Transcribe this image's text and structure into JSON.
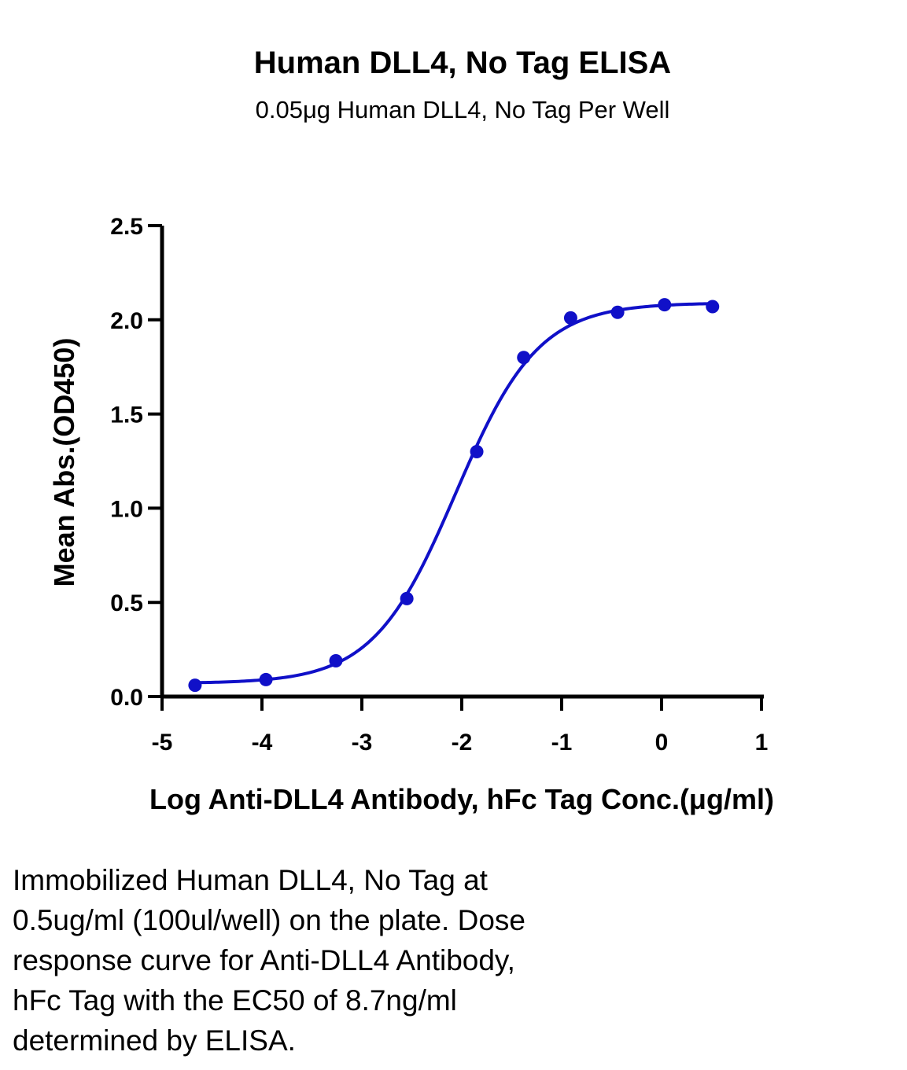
{
  "chart_data": {
    "type": "scatter",
    "title": "Human DLL4, No Tag ELISA",
    "subtitle": "0.05μg Human DLL4, No Tag Per Well",
    "xlabel": "Log Anti-DLL4 Antibody, hFc Tag Conc.(μg/ml)",
    "ylabel": "Mean Abs.(OD450)",
    "xlim": [
      -5,
      1
    ],
    "ylim": [
      0,
      2.5
    ],
    "xticks": [
      {
        "value": -5,
        "label": "-5"
      },
      {
        "value": -4,
        "label": "-4"
      },
      {
        "value": -3,
        "label": "-3"
      },
      {
        "value": -2,
        "label": "-2"
      },
      {
        "value": -1,
        "label": "-1"
      },
      {
        "value": 0,
        "label": "0"
      },
      {
        "value": 1,
        "label": "1"
      }
    ],
    "yticks": [
      {
        "value": 0,
        "label": "0.0"
      },
      {
        "value": 0.5,
        "label": "0.5"
      },
      {
        "value": 1,
        "label": "1.0"
      },
      {
        "value": 1.5,
        "label": "1.5"
      },
      {
        "value": 2,
        "label": "2.0"
      },
      {
        "value": 2.5,
        "label": "2.5"
      }
    ],
    "grid": false,
    "color": "#1010c8",
    "series": [
      {
        "x": [
          -4.67,
          -3.96,
          -3.26,
          -2.55,
          -1.85,
          -1.38,
          -0.91,
          -0.44,
          0.03,
          0.51
        ],
        "y": [
          0.06,
          0.09,
          0.19,
          0.52,
          1.3,
          1.8,
          2.01,
          2.04,
          2.08,
          2.07
        ]
      }
    ],
    "fit_curve": {
      "model": "4PL",
      "bottom": 0.07,
      "top": 2.09,
      "log_ec50": -2.06,
      "hill": 1.05
    }
  },
  "caption": {
    "lines": [
      "Immobilized Human DLL4, No Tag at",
      "0.5ug/ml (100ul/well) on the plate. Dose",
      "response curve for Anti-DLL4 Antibody,",
      "hFc Tag with the EC50 of 8.7ng/ml",
      "determined by ELISA."
    ]
  }
}
